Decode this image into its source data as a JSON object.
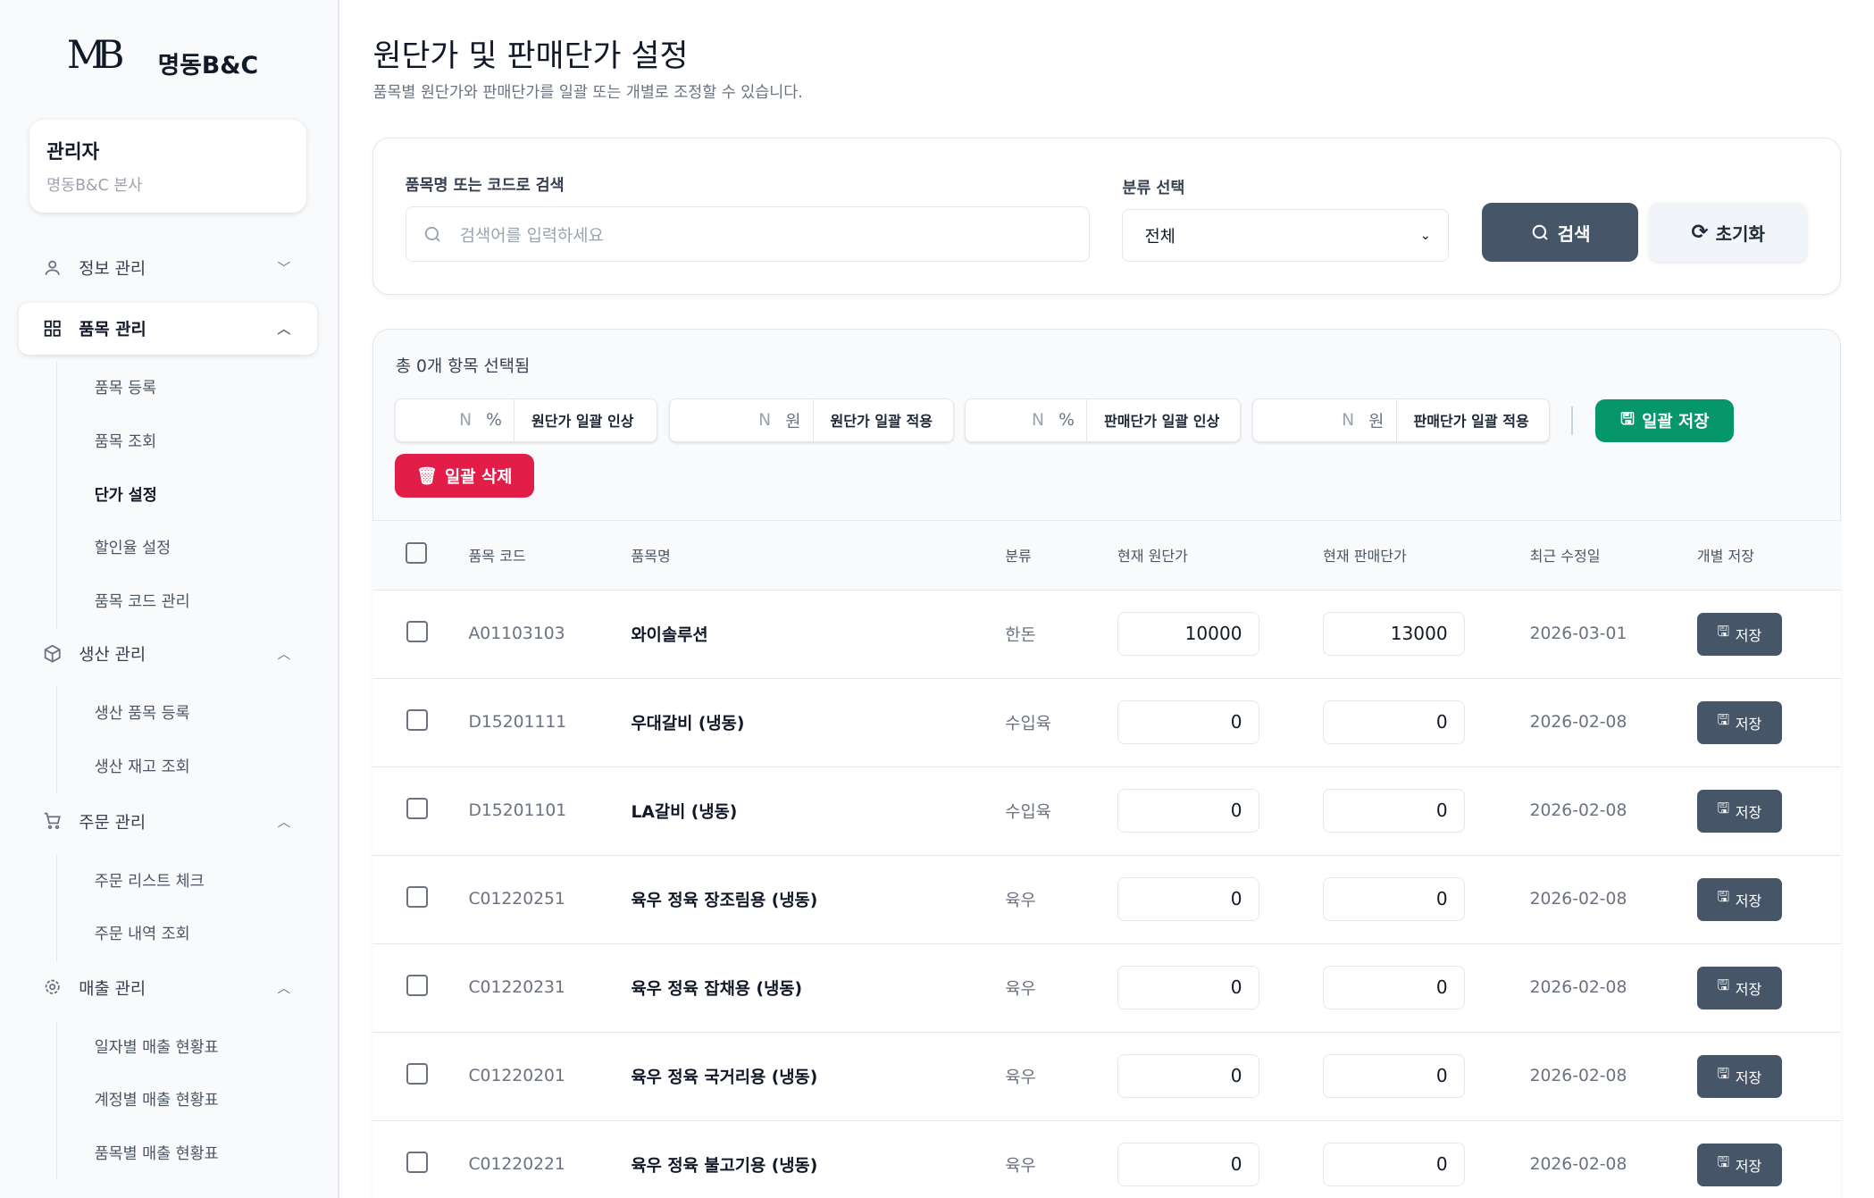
{
  "brand": {
    "logo": "MB",
    "name": "명동B&C"
  },
  "user": {
    "role": "관리자",
    "org": "명동B&C 본사"
  },
  "nav": [
    {
      "label": "정보 관리",
      "icon": "user-icon",
      "expanded": false
    },
    {
      "label": "품목 관리",
      "icon": "grid-icon",
      "expanded": true,
      "children": [
        "품목 등록",
        "품목 조회",
        "단가 설정",
        "할인율 설정",
        "품목 코드 관리"
      ]
    },
    {
      "label": "생산 관리",
      "icon": "box-icon",
      "expanded": true,
      "children": [
        "생산 품목 등록",
        "생산 재고 조회"
      ]
    },
    {
      "label": "주문 관리",
      "icon": "cart-icon",
      "expanded": true,
      "children": [
        "주문 리스트 체크",
        "주문 내역 조회"
      ]
    },
    {
      "label": "매출 관리",
      "icon": "gear-icon",
      "expanded": true,
      "children": [
        "일자별 매출 현황표",
        "계정별 매출 현황표",
        "품목별 매출 현황표"
      ]
    }
  ],
  "page": {
    "title": "원단가 및 판매단가 설정",
    "subtitle": "품목별 원단가와 판매단가를 일괄 또는 개별로 조정할 수 있습니다."
  },
  "search": {
    "label": "품목명 또는 코드로 검색",
    "placeholder": "검색어를 입력하세요",
    "category_label": "분류 선택",
    "category_value": "전체",
    "search_btn": "검색",
    "reset_btn": "초기화"
  },
  "bulk": {
    "selected": "총 0개 항목 선택됨",
    "items": [
      {
        "placeholder": "N",
        "unit": "%",
        "action": "원단가 일괄 인상"
      },
      {
        "placeholder": "N",
        "unit": "원",
        "action": "원단가 일괄 적용"
      },
      {
        "placeholder": "N",
        "unit": "%",
        "action": "판매단가 일괄 인상"
      },
      {
        "placeholder": "N",
        "unit": "원",
        "action": "판매단가 일괄 적용"
      }
    ],
    "save": "일괄 저장",
    "delete": "일괄 삭제",
    "save_color": "#059669",
    "delete_color": "#e11d48"
  },
  "table": {
    "headers": [
      "품목 코드",
      "품목명",
      "분류",
      "현재 원단가",
      "현재 판매단가",
      "최근 수정일",
      "개별 저장"
    ],
    "save_label": "저장",
    "rows": [
      {
        "code": "A01103103",
        "name": "와이솔루션",
        "cat": "한돈",
        "cost": "10000",
        "price": "13000",
        "date": "2026-03-01"
      },
      {
        "code": "D15201111",
        "name": "우대갈비 (냉동)",
        "cat": "수입육",
        "cost": "0",
        "price": "0",
        "date": "2026-02-08"
      },
      {
        "code": "D15201101",
        "name": "LA갈비 (냉동)",
        "cat": "수입육",
        "cost": "0",
        "price": "0",
        "date": "2026-02-08"
      },
      {
        "code": "C01220251",
        "name": "육우 정육 장조림용 (냉동)",
        "cat": "육우",
        "cost": "0",
        "price": "0",
        "date": "2026-02-08"
      },
      {
        "code": "C01220231",
        "name": "육우 정육 잡채용 (냉동)",
        "cat": "육우",
        "cost": "0",
        "price": "0",
        "date": "2026-02-08"
      },
      {
        "code": "C01220201",
        "name": "육우 정육 국거리용 (냉동)",
        "cat": "육우",
        "cost": "0",
        "price": "0",
        "date": "2026-02-08"
      },
      {
        "code": "C01220221",
        "name": "육우 정육 불고기용 (냉동)",
        "cat": "육우",
        "cost": "0",
        "price": "0",
        "date": "2026-02-08"
      }
    ]
  }
}
